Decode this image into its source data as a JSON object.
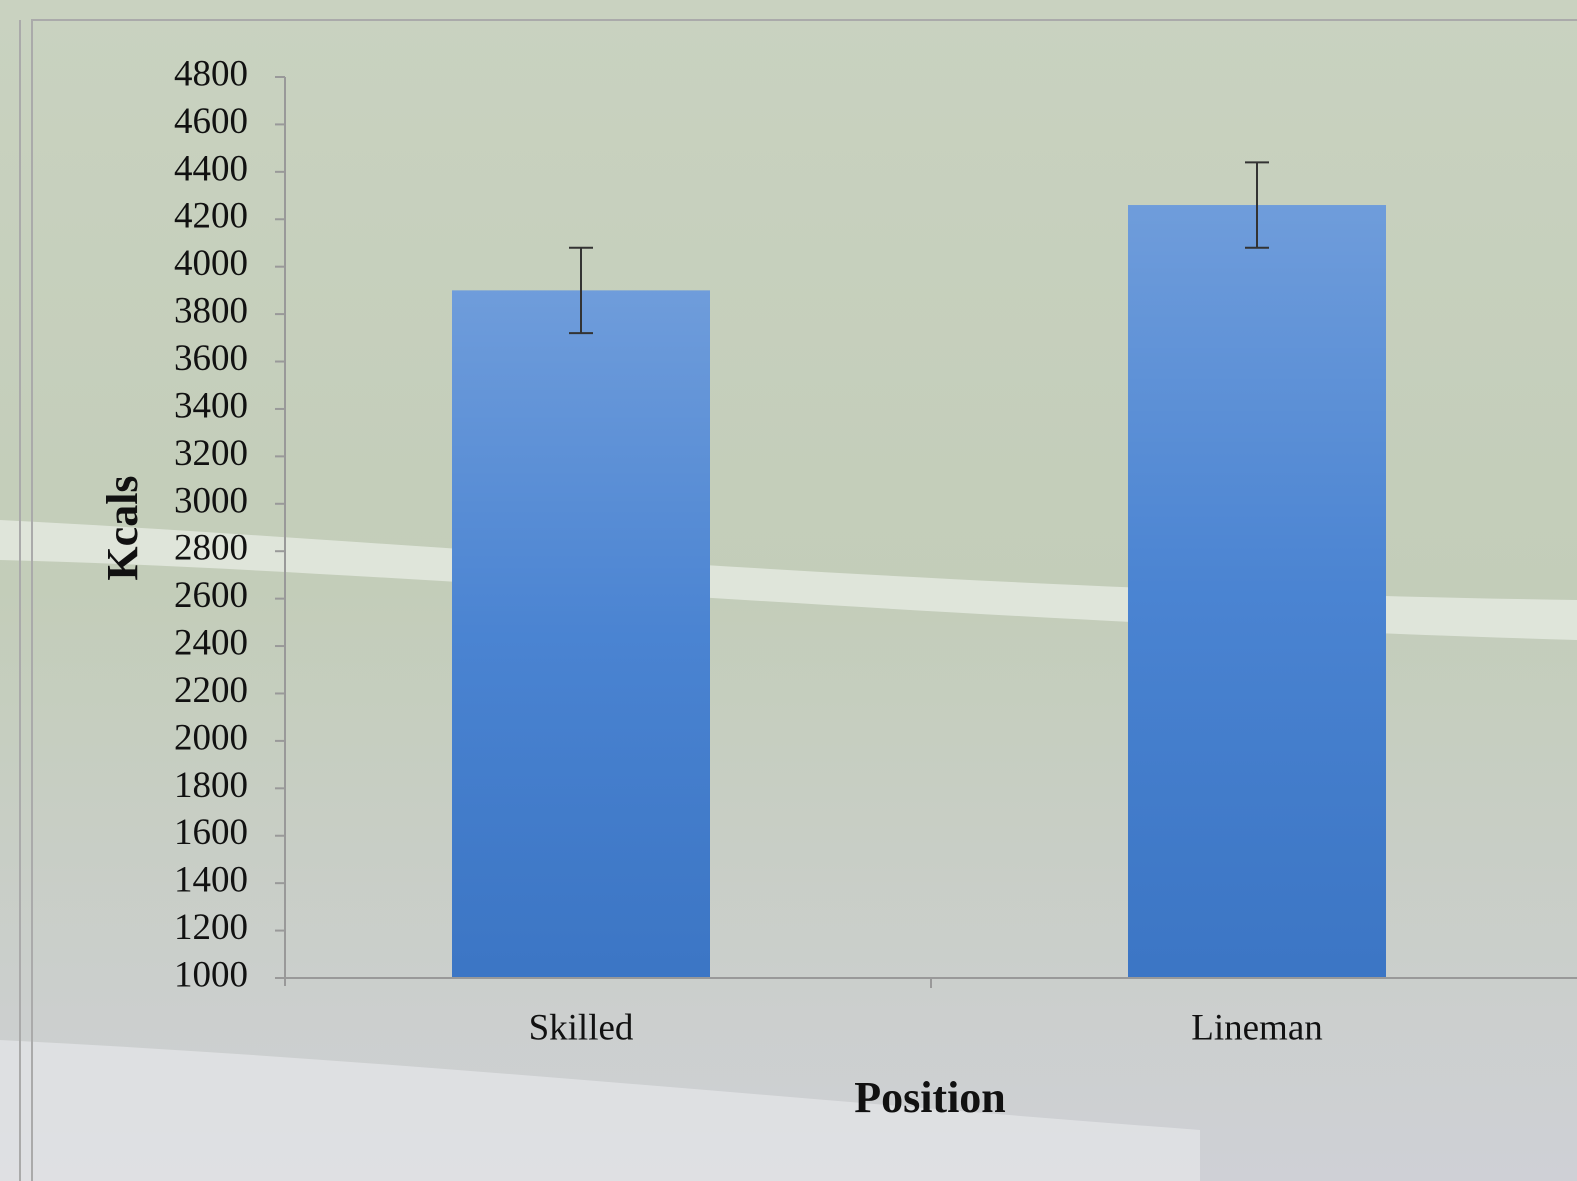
{
  "chart_data": {
    "type": "bar",
    "categories": [
      "Skilled",
      "Lineman"
    ],
    "values": [
      3900,
      4260
    ],
    "errors": [
      180,
      180
    ],
    "color": "#3f7ccf",
    "x_label": "Position",
    "y_label": "Kcals",
    "ylim": [
      1000,
      4800
    ],
    "yticks": [
      1000,
      1200,
      1400,
      1600,
      1800,
      2000,
      2200,
      2400,
      2600,
      2800,
      3000,
      3200,
      3400,
      3600,
      3800,
      4000,
      4200,
      4400,
      4600,
      4800
    ]
  }
}
